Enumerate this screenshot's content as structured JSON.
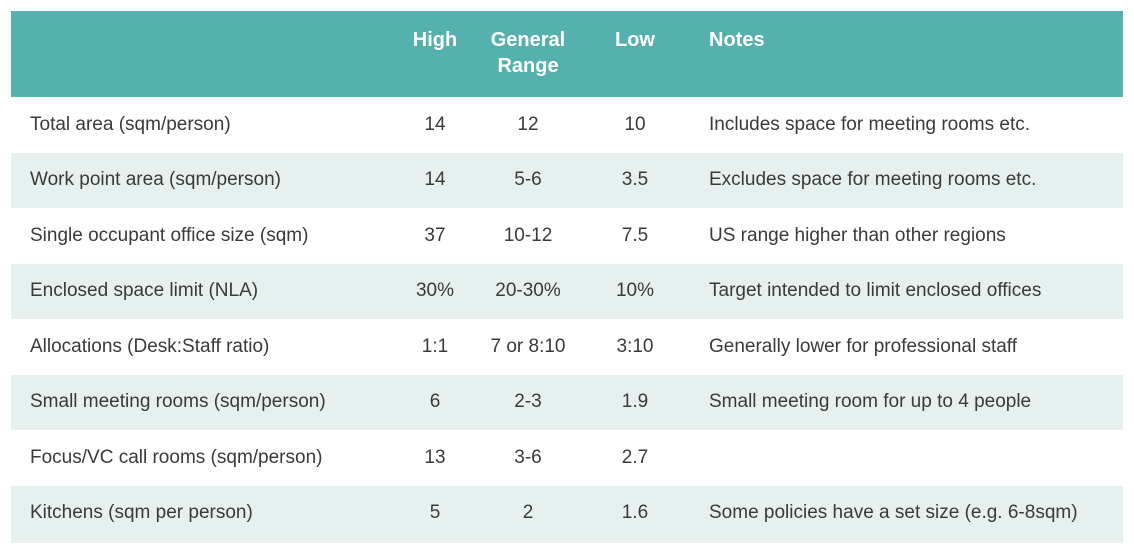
{
  "header": {
    "label": "",
    "high": "High",
    "general_range": "General Range",
    "low": "Low",
    "notes": "Notes"
  },
  "rows": [
    {
      "label": "Total area (sqm/person)",
      "high": "14",
      "general": "12",
      "low": "10",
      "notes": "Includes space for meeting rooms etc."
    },
    {
      "label": "Work point area (sqm/person)",
      "high": "14",
      "general": "5-6",
      "low": "3.5",
      "notes": "Excludes space for meeting rooms etc."
    },
    {
      "label": "Single occupant office size (sqm)",
      "high": "37",
      "general": "10-12",
      "low": "7.5",
      "notes": "US range higher than other regions"
    },
    {
      "label": "Enclosed space limit (NLA)",
      "high": "30%",
      "general": "20-30%",
      "low": "10%",
      "notes": "Target intended to limit enclosed offices"
    },
    {
      "label": "Allocations (Desk:Staff ratio)",
      "high": "1:1",
      "general": "7 or 8:10",
      "low": "3:10",
      "notes": "Generally lower for professional staff"
    },
    {
      "label": "Small meeting rooms (sqm/person)",
      "high": "6",
      "general": "2-3",
      "low": "1.9",
      "notes": "Small meeting room for up to 4 people"
    },
    {
      "label": "Focus/VC call rooms (sqm/person)",
      "high": "13",
      "general": "3-6",
      "low": "2.7",
      "notes": ""
    },
    {
      "label": "Kitchens (sqm per person)",
      "high": "5",
      "general": "2",
      "low": "1.6",
      "notes": "Some policies have a set size (e.g. 6-8sqm)"
    }
  ],
  "colors": {
    "header_bg": "#55b1ad",
    "header_text": "#ffffff",
    "row_alt_bg": "#e6f1ef",
    "row_bg": "#ffffff",
    "body_text": "#3a3a3a"
  }
}
